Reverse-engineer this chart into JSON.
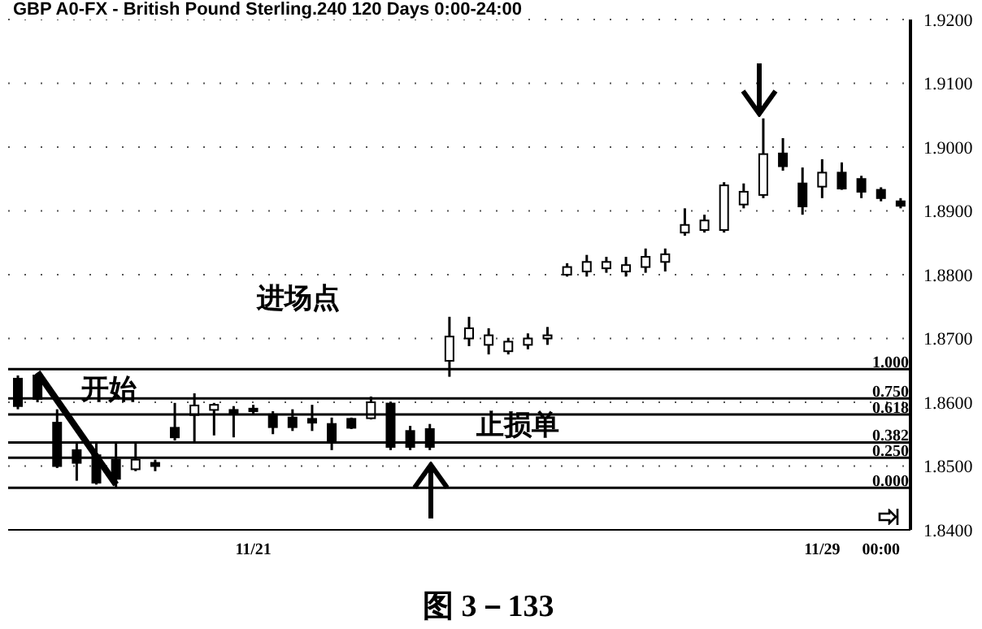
{
  "chart_data": {
    "type": "candlestick",
    "title": "GBP A0-FX - British Pound Sterling.240 120 Days 0:00-24:00",
    "categories": [
      null,
      null,
      null,
      null,
      null,
      null,
      null,
      null,
      null,
      null,
      null,
      null,
      "11/21",
      null,
      null,
      null,
      null,
      null,
      null,
      null,
      null,
      null,
      null,
      null,
      null,
      null,
      null,
      null,
      null,
      null,
      null,
      null,
      null,
      null,
      null,
      null,
      null,
      null,
      null,
      null,
      null,
      "11/29",
      null,
      null,
      "00:00",
      null
    ],
    "ohlc": [
      [
        1.8637,
        1.8642,
        1.8589,
        1.8594
      ],
      [
        1.8642,
        1.8645,
        1.86,
        1.8605
      ],
      [
        1.8568,
        1.8589,
        1.8497,
        1.85
      ],
      [
        1.8525,
        1.8535,
        1.8477,
        1.8505
      ],
      [
        1.8517,
        1.8535,
        1.8471,
        1.8474
      ],
      [
        1.851,
        1.8535,
        1.8466,
        1.848
      ],
      [
        1.8495,
        1.8535,
        1.8492,
        1.851
      ],
      [
        1.8505,
        1.851,
        1.8492,
        1.85
      ],
      [
        1.856,
        1.8599,
        1.854,
        1.8545
      ],
      [
        1.858,
        1.8614,
        1.8538,
        1.8595
      ],
      [
        1.8588,
        1.8599,
        1.8548,
        1.8596
      ],
      [
        1.8588,
        1.8594,
        1.8545,
        1.8581
      ],
      [
        1.859,
        1.8596,
        1.8581,
        1.8586
      ],
      [
        1.8581,
        1.8586,
        1.855,
        1.8561
      ],
      [
        1.8576,
        1.8589,
        1.8555,
        1.8561
      ],
      [
        1.8574,
        1.8596,
        1.8555,
        1.8568
      ],
      [
        1.8566,
        1.8576,
        1.8525,
        1.854
      ],
      [
        1.8574,
        1.8576,
        1.8558,
        1.856
      ],
      [
        1.8575,
        1.8609,
        1.8573,
        1.86
      ],
      [
        1.8598,
        1.8601,
        1.8525,
        1.853
      ],
      [
        1.8555,
        1.8563,
        1.8525,
        1.853
      ],
      [
        1.8558,
        1.8566,
        1.8525,
        1.853
      ],
      [
        1.8665,
        1.8734,
        1.864,
        1.8703
      ],
      [
        1.87,
        1.8734,
        1.8688,
        1.8716
      ],
      [
        1.869,
        1.8716,
        1.8675,
        1.8705
      ],
      [
        1.868,
        1.8701,
        1.8675,
        1.8695
      ],
      [
        1.869,
        1.8708,
        1.8683,
        1.87
      ],
      [
        1.87,
        1.8718,
        1.869,
        1.8705
      ],
      [
        1.88,
        1.8818,
        1.8797,
        1.8812
      ],
      [
        1.8805,
        1.8831,
        1.8797,
        1.882
      ],
      [
        1.881,
        1.8828,
        1.8803,
        1.882
      ],
      [
        1.8805,
        1.8828,
        1.8797,
        1.8815
      ],
      [
        1.8812,
        1.8841,
        1.8803,
        1.8828
      ],
      [
        1.882,
        1.8841,
        1.8805,
        1.8832
      ],
      [
        1.8866,
        1.8904,
        1.8861,
        1.8878
      ],
      [
        1.887,
        1.8894,
        1.8866,
        1.8885
      ],
      [
        1.887,
        1.8945,
        1.8866,
        1.894
      ],
      [
        1.891,
        1.8943,
        1.8904,
        1.893
      ],
      [
        1.8925,
        1.9045,
        1.892,
        1.8989
      ],
      [
        1.899,
        1.9014,
        1.8963,
        1.897
      ],
      [
        1.8943,
        1.8968,
        1.8894,
        1.8907
      ],
      [
        1.8938,
        1.8981,
        1.892,
        1.896
      ],
      [
        1.896,
        1.8976,
        1.8933,
        1.8935
      ],
      [
        1.895,
        1.8955,
        1.892,
        1.893
      ],
      [
        1.8933,
        1.8937,
        1.8915,
        1.892
      ],
      [
        1.8915,
        1.892,
        1.8904,
        1.8908
      ]
    ],
    "color": "#000000",
    "series": [
      {
        "type": "line",
        "color": "#000000",
        "values": [
          null,
          1.8647,
          null,
          null,
          null,
          1.8471,
          null,
          null,
          null,
          null,
          null,
          null,
          null,
          null,
          null,
          null,
          null,
          null,
          null,
          null,
          null,
          null,
          null,
          null,
          null,
          null,
          null,
          null,
          null,
          null,
          null,
          null,
          null,
          null,
          null,
          null,
          null,
          null,
          null,
          null,
          null,
          null,
          null,
          null,
          null,
          null
        ]
      }
    ],
    "ylim": [
      1.84,
      1.92
    ],
    "yticks": [
      {
        "value": 1.84,
        "label": "1.8400"
      },
      {
        "value": 1.85,
        "label": "1.8500"
      },
      {
        "value": 1.86,
        "label": "1.8600"
      },
      {
        "value": 1.87,
        "label": "1.8700"
      },
      {
        "value": 1.88,
        "label": "1.8800"
      },
      {
        "value": 1.89,
        "label": "1.8900"
      },
      {
        "value": 1.9,
        "label": "1.9000"
      },
      {
        "value": 1.91,
        "label": "1.9100"
      },
      {
        "value": 1.92,
        "label": "1.9200"
      }
    ],
    "ref_lines": [
      {
        "axis": "y",
        "value": 1.8652,
        "color": "#000000"
      },
      {
        "axis": "y",
        "value": 1.8606,
        "color": "#000000"
      },
      {
        "axis": "y",
        "value": 1.8581,
        "color": "#000000"
      },
      {
        "axis": "y",
        "value": 1.8537,
        "color": "#000000"
      },
      {
        "axis": "y",
        "value": 1.8513,
        "color": "#000000"
      },
      {
        "axis": "y",
        "value": 1.8466,
        "color": "#000000"
      }
    ],
    "annotations": [
      "进场点",
      "开始",
      "止损单",
      "图 3－133",
      {
        "text": "1.000",
        "y": 1.8652
      },
      {
        "text": "0.750",
        "y": 1.8606
      },
      {
        "text": "0.618",
        "y": 1.8581
      },
      {
        "text": "0.382",
        "y": 1.8537
      },
      {
        "text": "0.250",
        "y": 1.8513
      },
      {
        "text": "0.000",
        "y": 1.8466
      }
    ],
    "grid": "y",
    "line_style": "solid"
  }
}
